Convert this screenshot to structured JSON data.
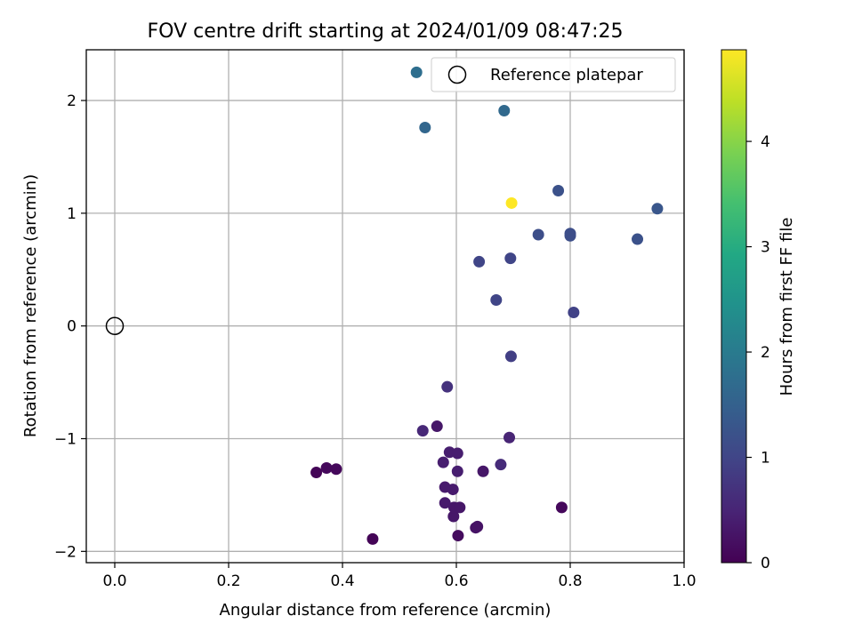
{
  "chart_data": {
    "type": "scatter",
    "title": "FOV centre drift starting at 2024/01/09 08:47:25",
    "xlabel": "Angular distance from reference (arcmin)",
    "ylabel": "Rotation from reference (arcmin)",
    "xlim": [
      -0.05,
      1.0
    ],
    "ylim": [
      -2.1,
      2.45
    ],
    "x_ticks": [
      0.0,
      0.2,
      0.4,
      0.6,
      0.8,
      1.0
    ],
    "x_tick_labels": [
      "0.0",
      "0.2",
      "0.4",
      "0.6",
      "0.8",
      "1.0"
    ],
    "y_ticks": [
      -2,
      -1,
      0,
      1,
      2
    ],
    "y_tick_labels": [
      "−2",
      "−1",
      "0",
      "1",
      "2"
    ],
    "grid": true,
    "legend": {
      "position": "top-right",
      "entries": [
        "Reference platepar"
      ]
    },
    "reference_point": {
      "x": 0.0,
      "y": 0.0
    },
    "colorbar": {
      "label": "Hours from first FF file",
      "colormap": "viridis",
      "range": [
        0,
        4.87
      ],
      "ticks": [
        0,
        1,
        2,
        3,
        4
      ],
      "tick_labels": [
        "0",
        "1",
        "2",
        "3",
        "4"
      ]
    },
    "points": [
      {
        "x": 0.453,
        "y": -1.89,
        "c": 0.05
      },
      {
        "x": 0.354,
        "y": -1.3,
        "c": 0.05
      },
      {
        "x": 0.372,
        "y": -1.26,
        "c": 0.1
      },
      {
        "x": 0.389,
        "y": -1.27,
        "c": 0.1
      },
      {
        "x": 0.603,
        "y": -1.86,
        "c": 0.15
      },
      {
        "x": 0.634,
        "y": -1.79,
        "c": 0.25
      },
      {
        "x": 0.637,
        "y": -1.78,
        "c": 0.25
      },
      {
        "x": 0.595,
        "y": -1.69,
        "c": 0.3
      },
      {
        "x": 0.785,
        "y": -1.61,
        "c": 0.1
      },
      {
        "x": 0.596,
        "y": -1.61,
        "c": 0.3
      },
      {
        "x": 0.606,
        "y": -1.61,
        "c": 0.3
      },
      {
        "x": 0.58,
        "y": -1.57,
        "c": 0.35
      },
      {
        "x": 0.594,
        "y": -1.45,
        "c": 0.35
      },
      {
        "x": 0.58,
        "y": -1.43,
        "c": 0.35
      },
      {
        "x": 0.602,
        "y": -1.29,
        "c": 0.4
      },
      {
        "x": 0.647,
        "y": -1.29,
        "c": 0.3
      },
      {
        "x": 0.577,
        "y": -1.21,
        "c": 0.4
      },
      {
        "x": 0.678,
        "y": -1.23,
        "c": 0.6
      },
      {
        "x": 0.588,
        "y": -1.12,
        "c": 0.4
      },
      {
        "x": 0.602,
        "y": -1.13,
        "c": 0.4
      },
      {
        "x": 0.566,
        "y": -0.89,
        "c": 0.3
      },
      {
        "x": 0.541,
        "y": -0.93,
        "c": 0.55
      },
      {
        "x": 0.693,
        "y": -0.99,
        "c": 0.5
      },
      {
        "x": 0.584,
        "y": -0.54,
        "c": 0.7
      },
      {
        "x": 0.696,
        "y": -0.27,
        "c": 0.9
      },
      {
        "x": 0.806,
        "y": 0.12,
        "c": 0.95
      },
      {
        "x": 0.67,
        "y": 0.23,
        "c": 1.0
      },
      {
        "x": 0.64,
        "y": 0.57,
        "c": 1.0
      },
      {
        "x": 0.695,
        "y": 0.6,
        "c": 1.0
      },
      {
        "x": 0.744,
        "y": 0.81,
        "c": 1.15
      },
      {
        "x": 0.8,
        "y": 0.8,
        "c": 1.15
      },
      {
        "x": 0.8,
        "y": 0.82,
        "c": 1.15
      },
      {
        "x": 0.918,
        "y": 0.77,
        "c": 1.2
      },
      {
        "x": 0.953,
        "y": 1.04,
        "c": 1.3
      },
      {
        "x": 0.779,
        "y": 1.2,
        "c": 1.2
      },
      {
        "x": 0.697,
        "y": 1.09,
        "c": 4.87
      },
      {
        "x": 0.545,
        "y": 1.76,
        "c": 1.6
      },
      {
        "x": 0.684,
        "y": 1.91,
        "c": 1.65
      },
      {
        "x": 0.53,
        "y": 2.25,
        "c": 1.75
      }
    ]
  }
}
